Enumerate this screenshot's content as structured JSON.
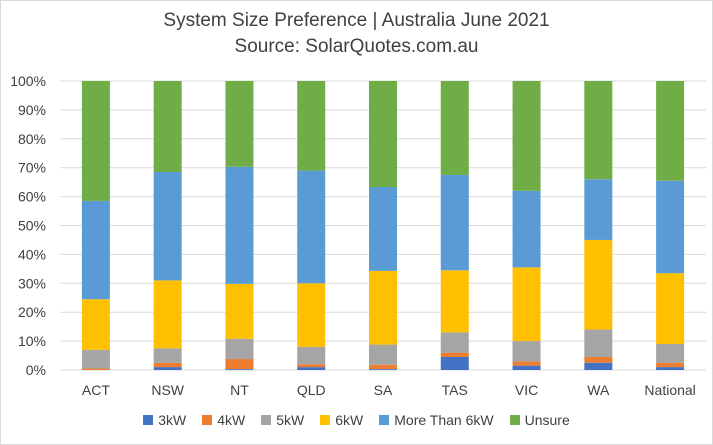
{
  "chart_data": {
    "type": "bar",
    "stacked": "percent",
    "title": "System Size Preference  | Australia June 2021",
    "subtitle": "Source: SolarQuotes.com.au",
    "categories": [
      "ACT",
      "NSW",
      "NT",
      "QLD",
      "SA",
      "TAS",
      "VIC",
      "WA",
      "National"
    ],
    "yticks": [
      "0%",
      "10%",
      "20%",
      "30%",
      "40%",
      "50%",
      "60%",
      "70%",
      "80%",
      "90%",
      "100%"
    ],
    "ylim": [
      0,
      100
    ],
    "grid": true,
    "legend_position": "bottom",
    "series": [
      {
        "name": "3kW",
        "color": "#4472C4",
        "values": [
          0.0,
          1.0,
          0.3,
          1.0,
          0.3,
          4.5,
          1.5,
          2.5,
          1.0
        ]
      },
      {
        "name": "4kW",
        "color": "#ED7D31",
        "values": [
          0.5,
          1.5,
          3.5,
          1.0,
          1.5,
          1.5,
          1.5,
          2.0,
          1.5
        ]
      },
      {
        "name": "5kW",
        "color": "#A5A5A5",
        "values": [
          6.5,
          5.0,
          7.0,
          6.0,
          7.0,
          7.0,
          7.0,
          9.5,
          6.5
        ]
      },
      {
        "name": "6kW",
        "color": "#FFC000",
        "values": [
          17.5,
          23.5,
          19.0,
          22.0,
          25.5,
          21.5,
          25.5,
          31.0,
          24.5
        ]
      },
      {
        "name": "More Than 6kW",
        "color": "#5B9BD5",
        "values": [
          34.0,
          37.5,
          40.5,
          39.0,
          29.0,
          33.0,
          26.5,
          21.0,
          32.0
        ]
      },
      {
        "name": "Unsure",
        "color": "#70AD47",
        "values": [
          41.5,
          31.5,
          29.7,
          31.0,
          36.7,
          32.5,
          38.0,
          34.0,
          34.5
        ]
      }
    ]
  }
}
